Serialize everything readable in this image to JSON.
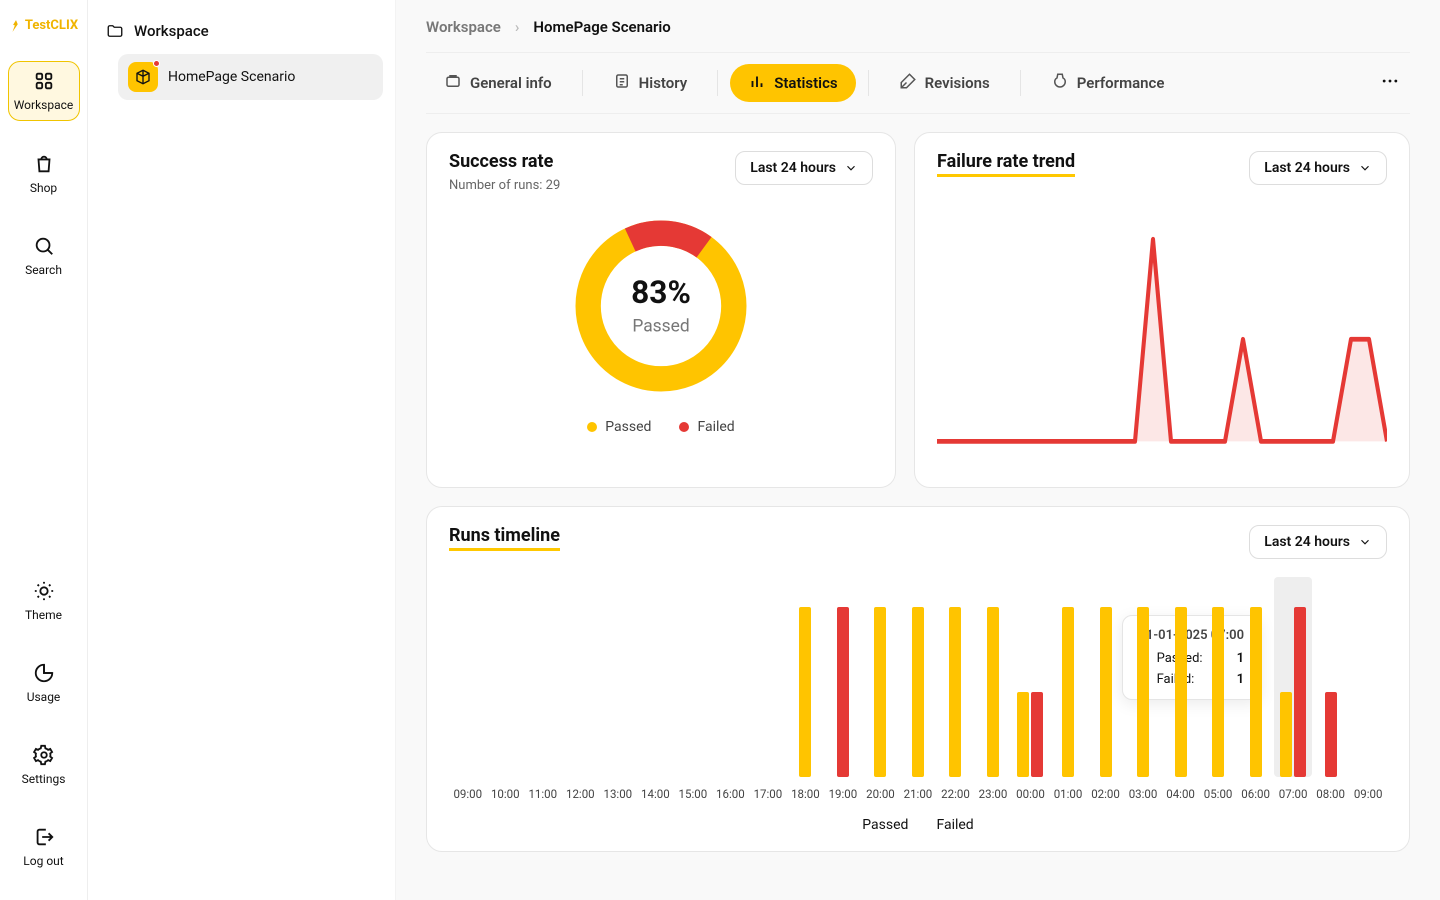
{
  "brand": "TestCLIX",
  "colors": {
    "accent": "#ffc400",
    "fail": "#e53935",
    "card_border": "#e6e6e6",
    "text_muted": "#666666",
    "bg": "#f9f9f9"
  },
  "nav": {
    "top": [
      {
        "id": "workspace",
        "label": "Workspace",
        "active": true
      },
      {
        "id": "shop",
        "label": "Shop"
      },
      {
        "id": "search",
        "label": "Search"
      }
    ],
    "bottom": [
      {
        "id": "theme",
        "label": "Theme"
      },
      {
        "id": "usage",
        "label": "Usage"
      },
      {
        "id": "settings",
        "label": "Settings"
      },
      {
        "id": "logout",
        "label": "Log out"
      }
    ]
  },
  "tree": {
    "root": "Workspace",
    "child": "HomePage Scenario",
    "has_alert": true
  },
  "breadcrumb": {
    "root": "Workspace",
    "current": "HomePage Scenario"
  },
  "tabs": [
    {
      "id": "general",
      "label": "General info"
    },
    {
      "id": "history",
      "label": "History"
    },
    {
      "id": "stats",
      "label": "Statistics",
      "active": true
    },
    {
      "id": "revisions",
      "label": "Revisions"
    },
    {
      "id": "performance",
      "label": "Performance"
    }
  ],
  "success_rate": {
    "title": "Success rate",
    "runs_label": "Number of runs: 29",
    "range": "Last 24 hours",
    "percent_label": "83%",
    "passed_label": "Passed",
    "pass_pct": 83,
    "fail_pct": 17,
    "legend": {
      "passed": "Passed",
      "failed": "Failed"
    }
  },
  "failure_trend": {
    "title": "Failure rate trend",
    "range": "Last 24 hours",
    "line_color": "#e53935",
    "fill_color": "rgba(229,57,53,0.12)",
    "points_y": [
      0,
      0,
      0,
      0,
      0,
      0,
      0,
      0,
      0,
      0,
      0,
      0,
      95,
      0,
      0,
      0,
      0,
      48,
      0,
      0,
      0,
      0,
      0,
      48,
      48,
      0
    ]
  },
  "timeline": {
    "title": "Runs timeline",
    "range": "Last 24 hours",
    "hours": [
      "09:00",
      "10:00",
      "11:00",
      "12:00",
      "13:00",
      "14:00",
      "15:00",
      "16:00",
      "17:00",
      "18:00",
      "19:00",
      "20:00",
      "21:00",
      "22:00",
      "23:00",
      "00:00",
      "01:00",
      "02:00",
      "03:00",
      "04:00",
      "05:00",
      "06:00",
      "07:00",
      "08:00",
      "09:00"
    ],
    "bars": [
      {
        "pass": 0,
        "fail": 0
      },
      {
        "pass": 0,
        "fail": 0
      },
      {
        "pass": 0,
        "fail": 0
      },
      {
        "pass": 0,
        "fail": 0
      },
      {
        "pass": 0,
        "fail": 0
      },
      {
        "pass": 0,
        "fail": 0
      },
      {
        "pass": 0,
        "fail": 0
      },
      {
        "pass": 0,
        "fail": 0
      },
      {
        "pass": 0,
        "fail": 0
      },
      {
        "pass": 100,
        "fail": 0
      },
      {
        "pass": 0,
        "fail": 100
      },
      {
        "pass": 100,
        "fail": 0
      },
      {
        "pass": 100,
        "fail": 0
      },
      {
        "pass": 100,
        "fail": 0
      },
      {
        "pass": 100,
        "fail": 0
      },
      {
        "pass": 50,
        "fail": 50,
        "short": true
      },
      {
        "pass": 100,
        "fail": 0
      },
      {
        "pass": 100,
        "fail": 0
      },
      {
        "pass": 100,
        "fail": 0
      },
      {
        "pass": 100,
        "fail": 0
      },
      {
        "pass": 100,
        "fail": 0
      },
      {
        "pass": 100,
        "fail": 0
      },
      {
        "pass": 100,
        "fail": 100,
        "short_pass": true
      },
      {
        "pass": 0,
        "fail": 50
      },
      {
        "pass": 0,
        "fail": 0
      }
    ],
    "highlight_index": 22,
    "tooltip": {
      "timestamp": "31-01-2025 07:00",
      "passed_label": "Passed:",
      "passed_val": "1",
      "failed_label": "Failed:",
      "failed_val": "1"
    },
    "legend": {
      "passed": "Passed",
      "failed": "Failed"
    }
  }
}
